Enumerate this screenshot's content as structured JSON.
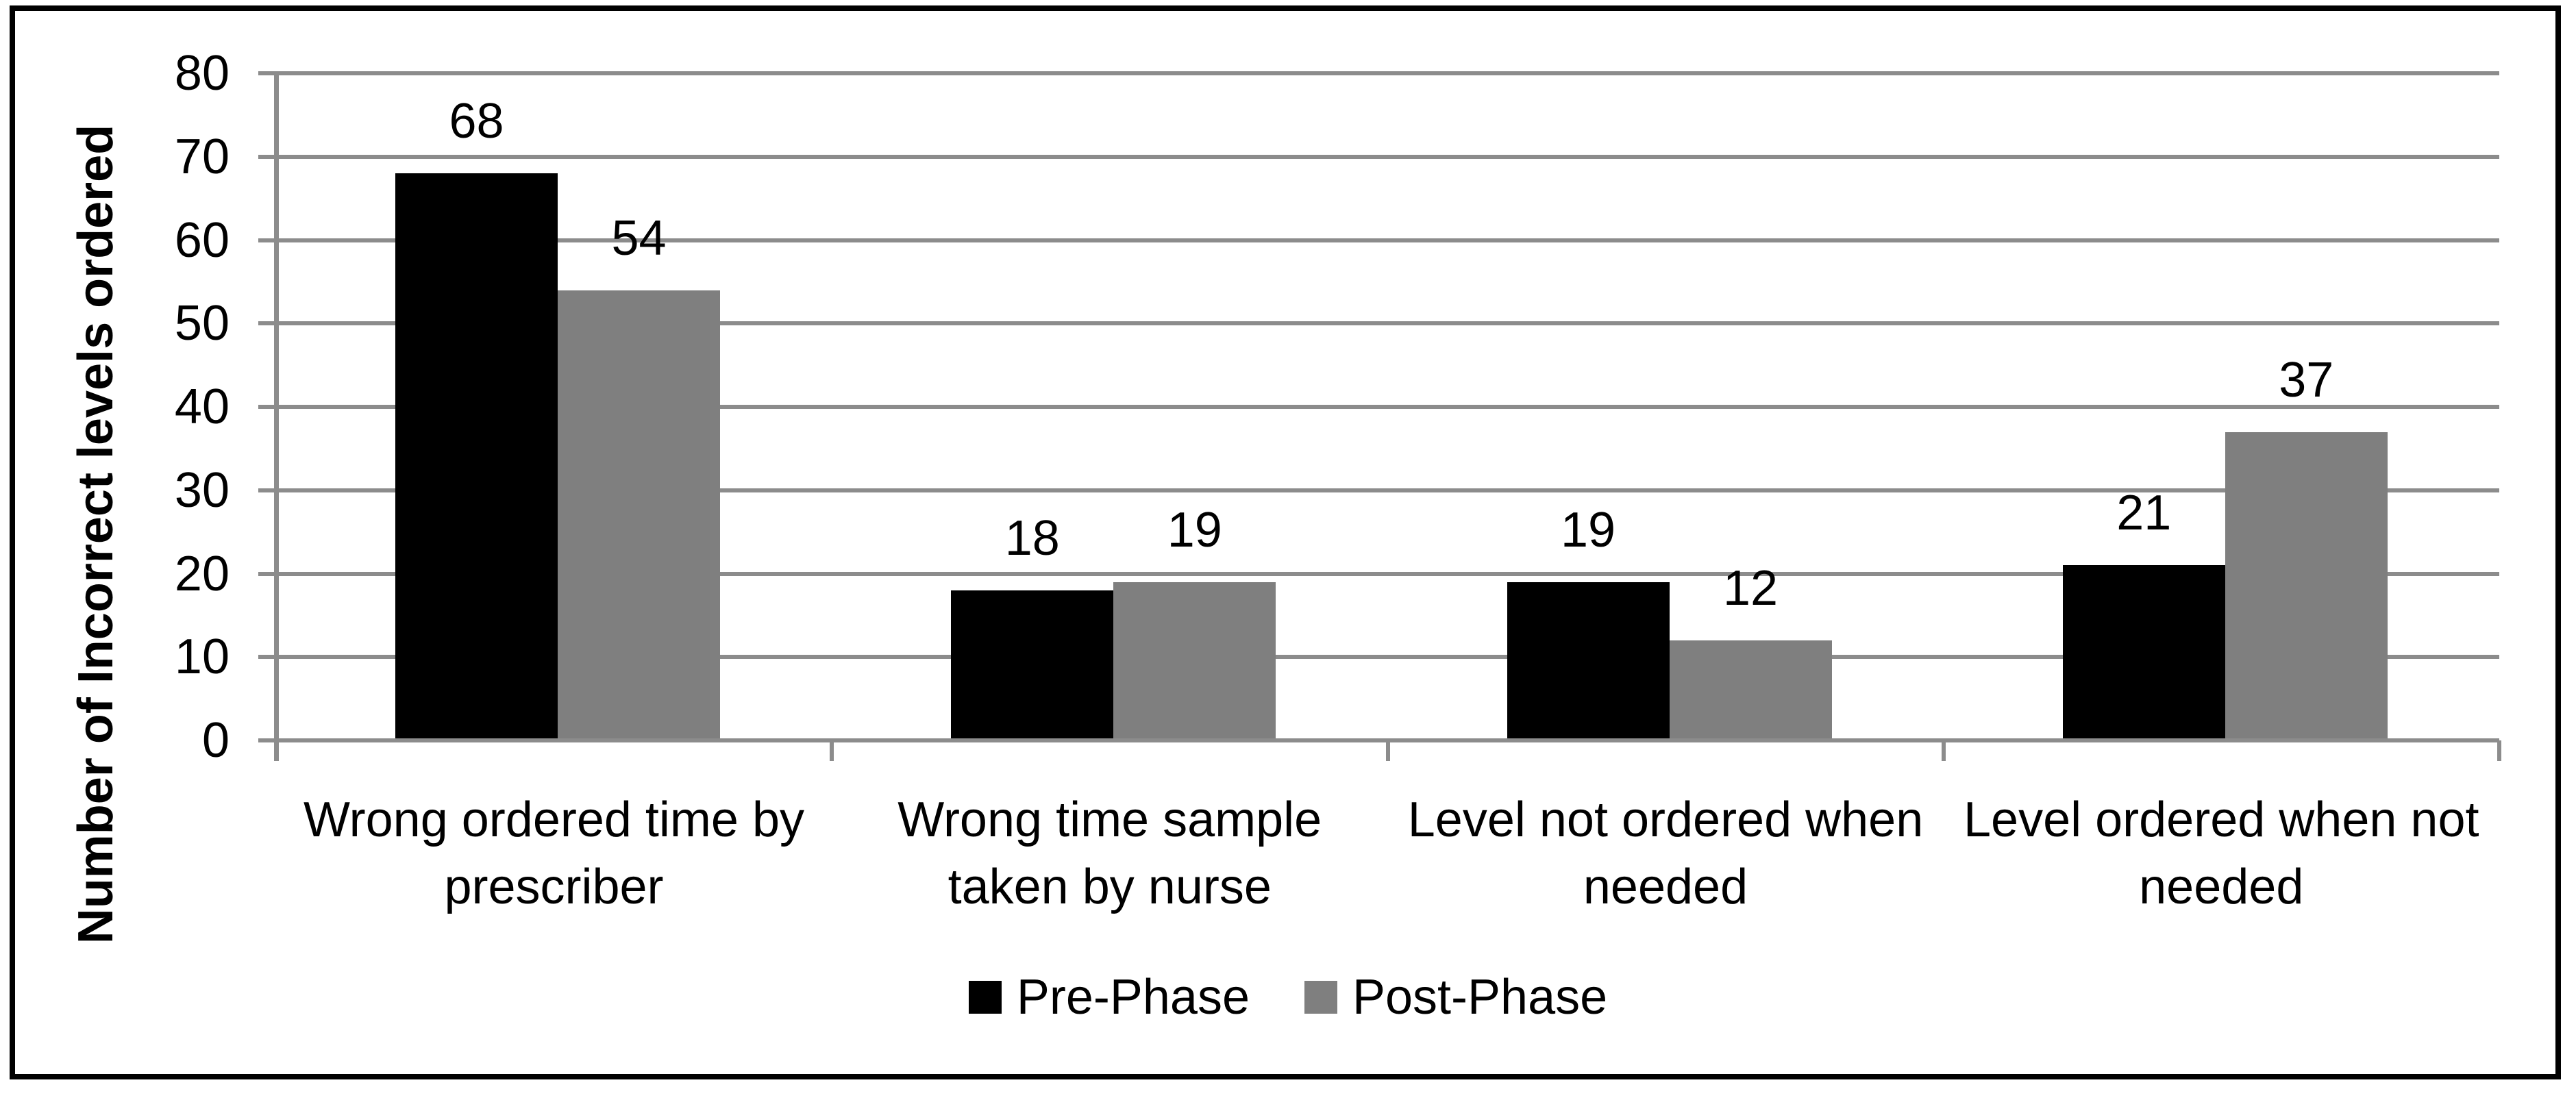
{
  "chart_data": {
    "type": "bar",
    "title": "",
    "ylabel": "Number of Incorrect levels ordered",
    "xlabel": "",
    "categories": [
      "Wrong ordered time by prescriber",
      "Wrong time sample taken by nurse",
      "Level not ordered when needed",
      "Level ordered when not needed"
    ],
    "series": [
      {
        "name": "Pre-Phase",
        "color": "#000000",
        "values": [
          68,
          18,
          19,
          21
        ]
      },
      {
        "name": "Post-Phase",
        "color": "#7f7f7f",
        "values": [
          54,
          19,
          12,
          37
        ]
      }
    ],
    "ylim": [
      0,
      80
    ],
    "yticks": [
      0,
      10,
      20,
      30,
      40,
      50,
      60,
      70,
      80
    ],
    "grid": true,
    "grid_color": "#8c8c8c",
    "axis_color": "#8c8c8c",
    "legend_position": "bottom",
    "data_labels": true
  }
}
